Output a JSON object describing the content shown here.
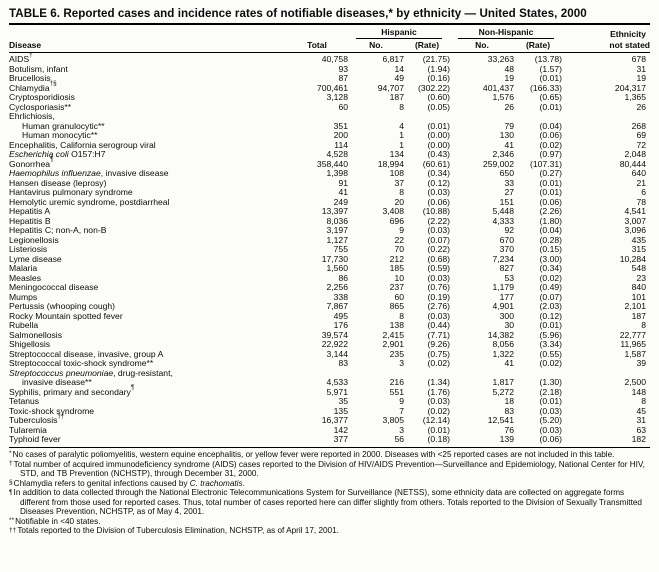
{
  "page": {
    "title": "TABLE 6. Reported cases and incidence rates of notifiable diseases,* by ethnicity — United States, 2000"
  },
  "table": {
    "header": {
      "disease": "Disease",
      "total": "Total",
      "hispanic": "Hispanic",
      "non_hispanic": "Non-Hispanic",
      "no": "No.",
      "rate": "(Rate)",
      "ethnicity_line1": "Ethnicity",
      "ethnicity_line2": "not stated"
    },
    "rows": [
      {
        "name": [
          {
            "t": "AIDS"
          },
          {
            "t": "†",
            "s": 1
          }
        ],
        "total": "40,758",
        "h_no": "6,817",
        "h_rate": "(21.75)",
        "n_no": "33,263",
        "n_rate": "(13.78)",
        "ns": "678"
      },
      {
        "name": [
          {
            "t": "Botulism, infant"
          }
        ],
        "total": "93",
        "h_no": "14",
        "h_rate": "(1.94)",
        "n_no": "48",
        "n_rate": "(1.57)",
        "ns": "31"
      },
      {
        "name": [
          {
            "t": "Brucellosis"
          }
        ],
        "total": "87",
        "h_no": "49",
        "h_rate": "(0.16)",
        "n_no": "19",
        "n_rate": "(0.01)",
        "ns": "19"
      },
      {
        "name": [
          {
            "t": "Chlamydia"
          },
          {
            "t": "†§",
            "s": 1
          }
        ],
        "total": "700,461",
        "h_no": "94,707",
        "h_rate": "(302.22)",
        "n_no": "401,437",
        "n_rate": "(166.33)",
        "ns": "204,317"
      },
      {
        "name": [
          {
            "t": "Cryptosporidiosis"
          }
        ],
        "total": "3,128",
        "h_no": "187",
        "h_rate": "(0.60)",
        "n_no": "1,576",
        "n_rate": "(0.65)",
        "ns": "1,365"
      },
      {
        "name": [
          {
            "t": "Cyclosporiasis**"
          }
        ],
        "total": "60",
        "h_no": "8",
        "h_rate": "(0.05)",
        "n_no": "26",
        "n_rate": "(0.01)",
        "ns": "26"
      },
      {
        "name": [
          {
            "t": "Ehrlichiosis,"
          }
        ],
        "group": 1
      },
      {
        "name": [
          {
            "t": "Human granulocytic**"
          }
        ],
        "indent": 1,
        "total": "351",
        "h_no": "4",
        "h_rate": "(0.01)",
        "n_no": "79",
        "n_rate": "(0.04)",
        "ns": "268"
      },
      {
        "name": [
          {
            "t": "Human monocytic**"
          }
        ],
        "indent": 1,
        "total": "200",
        "h_no": "1",
        "h_rate": "(0.00)",
        "n_no": "130",
        "n_rate": "(0.06)",
        "ns": "69"
      },
      {
        "name": [
          {
            "t": "Encephalitis, California serogroup viral"
          }
        ],
        "total": "114",
        "h_no": "1",
        "h_rate": "(0.00)",
        "n_no": "41",
        "n_rate": "(0.02)",
        "ns": "72"
      },
      {
        "name": [
          {
            "t": "Escherichia coli",
            "i": 1
          },
          {
            "t": " O157:H7"
          }
        ],
        "total": "4,528",
        "h_no": "134",
        "h_rate": "(0.43)",
        "n_no": "2,346",
        "n_rate": "(0.97)",
        "ns": "2,048"
      },
      {
        "name": [
          {
            "t": "Gonorrhea"
          },
          {
            "t": "¶",
            "s": 1
          }
        ],
        "total": "358,440",
        "h_no": "18,994",
        "h_rate": "(60.61)",
        "n_no": "259,002",
        "n_rate": "(107.31)",
        "ns": "80,444"
      },
      {
        "name": [
          {
            "t": "Haemophilus influenzae",
            "i": 1
          },
          {
            "t": ", invasive disease"
          }
        ],
        "total": "1,398",
        "h_no": "108",
        "h_rate": "(0.34)",
        "n_no": "650",
        "n_rate": "(0.27)",
        "ns": "640"
      },
      {
        "name": [
          {
            "t": "Hansen disease (leprosy)"
          }
        ],
        "total": "91",
        "h_no": "37",
        "h_rate": "(0.12)",
        "n_no": "33",
        "n_rate": "(0.01)",
        "ns": "21"
      },
      {
        "name": [
          {
            "t": "Hantavirus pulmonary syndrome"
          }
        ],
        "total": "41",
        "h_no": "8",
        "h_rate": "(0.03)",
        "n_no": "27",
        "n_rate": "(0.01)",
        "ns": "6"
      },
      {
        "name": [
          {
            "t": "Hemolytic uremic syndrome, postdiarrheal"
          }
        ],
        "total": "249",
        "h_no": "20",
        "h_rate": "(0.06)",
        "n_no": "151",
        "n_rate": "(0.06)",
        "ns": "78"
      },
      {
        "name": [
          {
            "t": "Hepatitis A"
          }
        ],
        "total": "13,397",
        "h_no": "3,408",
        "h_rate": "(10.88)",
        "n_no": "5,448",
        "n_rate": "(2.26)",
        "ns": "4,541"
      },
      {
        "name": [
          {
            "t": "Hepatitis B"
          }
        ],
        "total": "8,036",
        "h_no": "696",
        "h_rate": "(2.22)",
        "n_no": "4,333",
        "n_rate": "(1.80)",
        "ns": "3,007"
      },
      {
        "name": [
          {
            "t": "Hepatitis C; non-A, non-B"
          }
        ],
        "total": "3,197",
        "h_no": "9",
        "h_rate": "(0.03)",
        "n_no": "92",
        "n_rate": "(0.04)",
        "ns": "3,096"
      },
      {
        "name": [
          {
            "t": "Legionellosis"
          }
        ],
        "total": "1,127",
        "h_no": "22",
        "h_rate": "(0.07)",
        "n_no": "670",
        "n_rate": "(0.28)",
        "ns": "435"
      },
      {
        "name": [
          {
            "t": "Listeriosis"
          }
        ],
        "total": "755",
        "h_no": "70",
        "h_rate": "(0.22)",
        "n_no": "370",
        "n_rate": "(0.15)",
        "ns": "315"
      },
      {
        "name": [
          {
            "t": "Lyme disease"
          }
        ],
        "total": "17,730",
        "h_no": "212",
        "h_rate": "(0.68)",
        "n_no": "7,234",
        "n_rate": "(3.00)",
        "ns": "10,284"
      },
      {
        "name": [
          {
            "t": "Malaria"
          }
        ],
        "total": "1,560",
        "h_no": "185",
        "h_rate": "(0.59)",
        "n_no": "827",
        "n_rate": "(0.34)",
        "ns": "548"
      },
      {
        "name": [
          {
            "t": "Measles"
          }
        ],
        "total": "86",
        "h_no": "10",
        "h_rate": "(0.03)",
        "n_no": "53",
        "n_rate": "(0.02)",
        "ns": "23"
      },
      {
        "name": [
          {
            "t": "Meningococcal disease"
          }
        ],
        "total": "2,256",
        "h_no": "237",
        "h_rate": "(0.76)",
        "n_no": "1,179",
        "n_rate": "(0.49)",
        "ns": "840"
      },
      {
        "name": [
          {
            "t": "Mumps"
          }
        ],
        "total": "338",
        "h_no": "60",
        "h_rate": "(0.19)",
        "n_no": "177",
        "n_rate": "(0.07)",
        "ns": "101"
      },
      {
        "name": [
          {
            "t": "Pertussis (whooping cough)"
          }
        ],
        "total": "7,867",
        "h_no": "865",
        "h_rate": "(2.76)",
        "n_no": "4,901",
        "n_rate": "(2.03)",
        "ns": "2,101"
      },
      {
        "name": [
          {
            "t": "Rocky Mountain spotted fever"
          }
        ],
        "total": "495",
        "h_no": "8",
        "h_rate": "(0.03)",
        "n_no": "300",
        "n_rate": "(0.12)",
        "ns": "187"
      },
      {
        "name": [
          {
            "t": "Rubella"
          }
        ],
        "total": "176",
        "h_no": "138",
        "h_rate": "(0.44)",
        "n_no": "30",
        "n_rate": "(0.01)",
        "ns": "8"
      },
      {
        "name": [
          {
            "t": "Salmonellosis"
          }
        ],
        "total": "39,574",
        "h_no": "2,415",
        "h_rate": "(7.71)",
        "n_no": "14,382",
        "n_rate": "(5.96)",
        "ns": "22,777"
      },
      {
        "name": [
          {
            "t": "Shigellosis"
          }
        ],
        "total": "22,922",
        "h_no": "2,901",
        "h_rate": "(9.26)",
        "n_no": "8,056",
        "n_rate": "(3.34)",
        "ns": "11,965"
      },
      {
        "name": [
          {
            "t": "Streptococcal disease, invasive, group A"
          }
        ],
        "total": "3,144",
        "h_no": "235",
        "h_rate": "(0.75)",
        "n_no": "1,322",
        "n_rate": "(0.55)",
        "ns": "1,587"
      },
      {
        "name": [
          {
            "t": "Streptococcal toxic-shock syndrome**"
          }
        ],
        "total": "83",
        "h_no": "3",
        "h_rate": "(0.02)",
        "n_no": "41",
        "n_rate": "(0.02)",
        "ns": "39"
      },
      {
        "name": [
          {
            "t": "Streptococcus pneumoniae",
            "i": 1
          },
          {
            "t": ", drug-resistant,"
          }
        ],
        "group": 1
      },
      {
        "name": [
          {
            "t": "invasive disease**"
          }
        ],
        "indent": 1,
        "total": "4,533",
        "h_no": "216",
        "h_rate": "(1.34)",
        "n_no": "1,817",
        "n_rate": "(1.30)",
        "ns": "2,500"
      },
      {
        "name": [
          {
            "t": "Syphilis, primary and secondary"
          },
          {
            "t": "¶",
            "s": 1
          }
        ],
        "total": "5,971",
        "h_no": "551",
        "h_rate": "(1.76)",
        "n_no": "5,272",
        "n_rate": "(2.18)",
        "ns": "148"
      },
      {
        "name": [
          {
            "t": "Tetanus"
          }
        ],
        "total": "35",
        "h_no": "9",
        "h_rate": "(0.03)",
        "n_no": "18",
        "n_rate": "(0.01)",
        "ns": "8"
      },
      {
        "name": [
          {
            "t": "Toxic-shock syndrome"
          }
        ],
        "total": "135",
        "h_no": "7",
        "h_rate": "(0.02)",
        "n_no": "83",
        "n_rate": "(0.03)",
        "ns": "45"
      },
      {
        "name": [
          {
            "t": "Tuberculosis"
          },
          {
            "t": "††",
            "s": 1
          }
        ],
        "total": "16,377",
        "h_no": "3,805",
        "h_rate": "(12.14)",
        "n_no": "12,541",
        "n_rate": "(5.20)",
        "ns": "31"
      },
      {
        "name": [
          {
            "t": "Tularemia"
          }
        ],
        "total": "142",
        "h_no": "3",
        "h_rate": "(0.01)",
        "n_no": "76",
        "n_rate": "(0.03)",
        "ns": "63"
      },
      {
        "name": [
          {
            "t": "Typhoid fever"
          }
        ],
        "total": "377",
        "h_no": "56",
        "h_rate": "(0.18)",
        "n_no": "139",
        "n_rate": "(0.06)",
        "ns": "182"
      }
    ]
  },
  "footnotes": [
    {
      "sym": "*",
      "parts": [
        {
          "t": "No cases of paralytic poliomyelitis, western equine encephalitis, or yellow fever were reported in 2000. Diseases with <25 reported cases are not included in this table."
        }
      ]
    },
    {
      "sym": "†",
      "parts": [
        {
          "t": "Total number of acquired immunodeficiency syndrome (AIDS) cases reported to the Division of HIV/AIDS Prevention—Surveillance and Epidemiology, National Center for HIV, STD, and TB Prevention (NCHSTP), through December 31, 2000."
        }
      ]
    },
    {
      "sym": "§",
      "parts": [
        {
          "t": "Chlamydia refers to genital infections caused by "
        },
        {
          "t": "C. trachomatis",
          "i": 1
        },
        {
          "t": "."
        }
      ]
    },
    {
      "sym": "¶",
      "parts": [
        {
          "t": "In addition to data collected through the National Electronic Telecommunications System for Surveillance (NETSS), some ethnicity data are collected on aggregate forms different from those used for reported cases. Thus, total number of cases reported here can differ slightly from others. Totals reported to the Division of Sexually Transmitted Diseases Prevention, NCHSTP, as of May 4, 2001."
        }
      ]
    },
    {
      "sym": "**",
      "parts": [
        {
          "t": "Notifiable in <40 states."
        }
      ]
    },
    {
      "sym": "††",
      "parts": [
        {
          "t": "Totals reported to the Division of Tuberculosis Elimination, NCHSTP, as of April 17, 2001."
        }
      ]
    }
  ]
}
